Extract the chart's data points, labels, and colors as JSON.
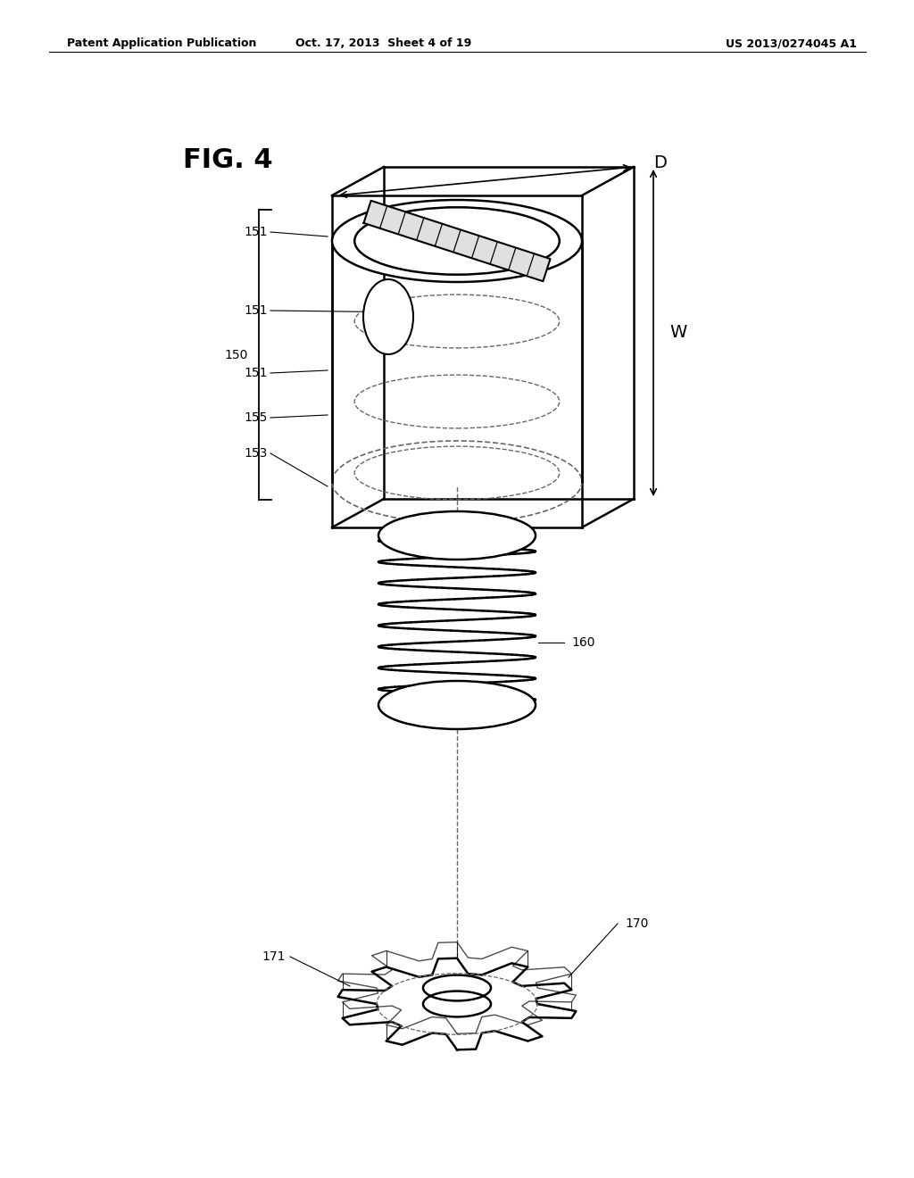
{
  "bg_color": "#ffffff",
  "line_color": "#000000",
  "dashed_color": "#666666",
  "header_left": "Patent Application Publication",
  "header_center": "Oct. 17, 2013  Sheet 4 of 19",
  "header_right": "US 2013/0274045 A1",
  "fig_label": "FIG. 4"
}
